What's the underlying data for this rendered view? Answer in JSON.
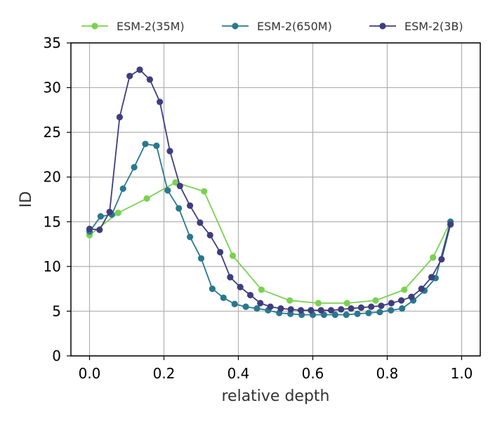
{
  "chart_data": {
    "type": "line",
    "xlabel": "relative depth",
    "ylabel": "ID",
    "xlim": [
      -0.05,
      1.05
    ],
    "ylim": [
      0,
      35
    ],
    "xticks": [
      "0.0",
      "0.2",
      "0.4",
      "0.6",
      "0.8",
      "1.0"
    ],
    "yticks": [
      "0",
      "5",
      "10",
      "15",
      "20",
      "25",
      "30",
      "35"
    ],
    "grid": true,
    "legend_position": "top",
    "series": [
      {
        "name": "ESM-2(35M)",
        "color": "#7ad151",
        "x": [
          0.0,
          0.077,
          0.154,
          0.231,
          0.308,
          0.385,
          0.462,
          0.538,
          0.615,
          0.692,
          0.769,
          0.846,
          0.923,
          0.97
        ],
        "y": [
          13.5,
          16.0,
          17.6,
          19.4,
          18.4,
          11.2,
          7.4,
          6.2,
          5.9,
          5.9,
          6.2,
          7.4,
          11.0,
          15.0
        ]
      },
      {
        "name": "ESM-2(650M)",
        "color": "#2a788e",
        "x": [
          0.0,
          0.03,
          0.06,
          0.09,
          0.12,
          0.15,
          0.18,
          0.21,
          0.24,
          0.27,
          0.3,
          0.33,
          0.36,
          0.39,
          0.42,
          0.45,
          0.48,
          0.51,
          0.54,
          0.57,
          0.6,
          0.63,
          0.66,
          0.69,
          0.72,
          0.75,
          0.78,
          0.81,
          0.84,
          0.87,
          0.9,
          0.93,
          0.97
        ],
        "y": [
          13.9,
          15.6,
          15.8,
          18.7,
          21.1,
          23.7,
          23.5,
          18.5,
          16.5,
          13.3,
          10.9,
          7.5,
          6.5,
          5.8,
          5.5,
          5.3,
          5.1,
          4.8,
          4.7,
          4.6,
          4.6,
          4.6,
          4.6,
          4.6,
          4.7,
          4.8,
          4.9,
          5.1,
          5.3,
          6.2,
          7.3,
          8.7,
          15.0
        ]
      },
      {
        "name": "ESM-2(3B)",
        "color": "#3e3d7e",
        "x": [
          0.0,
          0.027,
          0.054,
          0.081,
          0.108,
          0.135,
          0.162,
          0.189,
          0.216,
          0.243,
          0.27,
          0.297,
          0.324,
          0.351,
          0.378,
          0.405,
          0.432,
          0.459,
          0.486,
          0.514,
          0.541,
          0.568,
          0.595,
          0.622,
          0.649,
          0.676,
          0.703,
          0.73,
          0.757,
          0.784,
          0.811,
          0.838,
          0.865,
          0.892,
          0.919,
          0.946,
          0.97
        ],
        "y": [
          14.2,
          14.1,
          16.1,
          26.7,
          31.3,
          32.0,
          30.9,
          28.4,
          22.9,
          19.0,
          16.8,
          14.9,
          13.5,
          11.6,
          8.8,
          7.7,
          6.8,
          5.9,
          5.5,
          5.3,
          5.2,
          5.1,
          5.1,
          5.1,
          5.1,
          5.2,
          5.3,
          5.4,
          5.5,
          5.6,
          5.9,
          6.2,
          6.6,
          7.5,
          8.8,
          10.8,
          14.7
        ]
      }
    ]
  }
}
